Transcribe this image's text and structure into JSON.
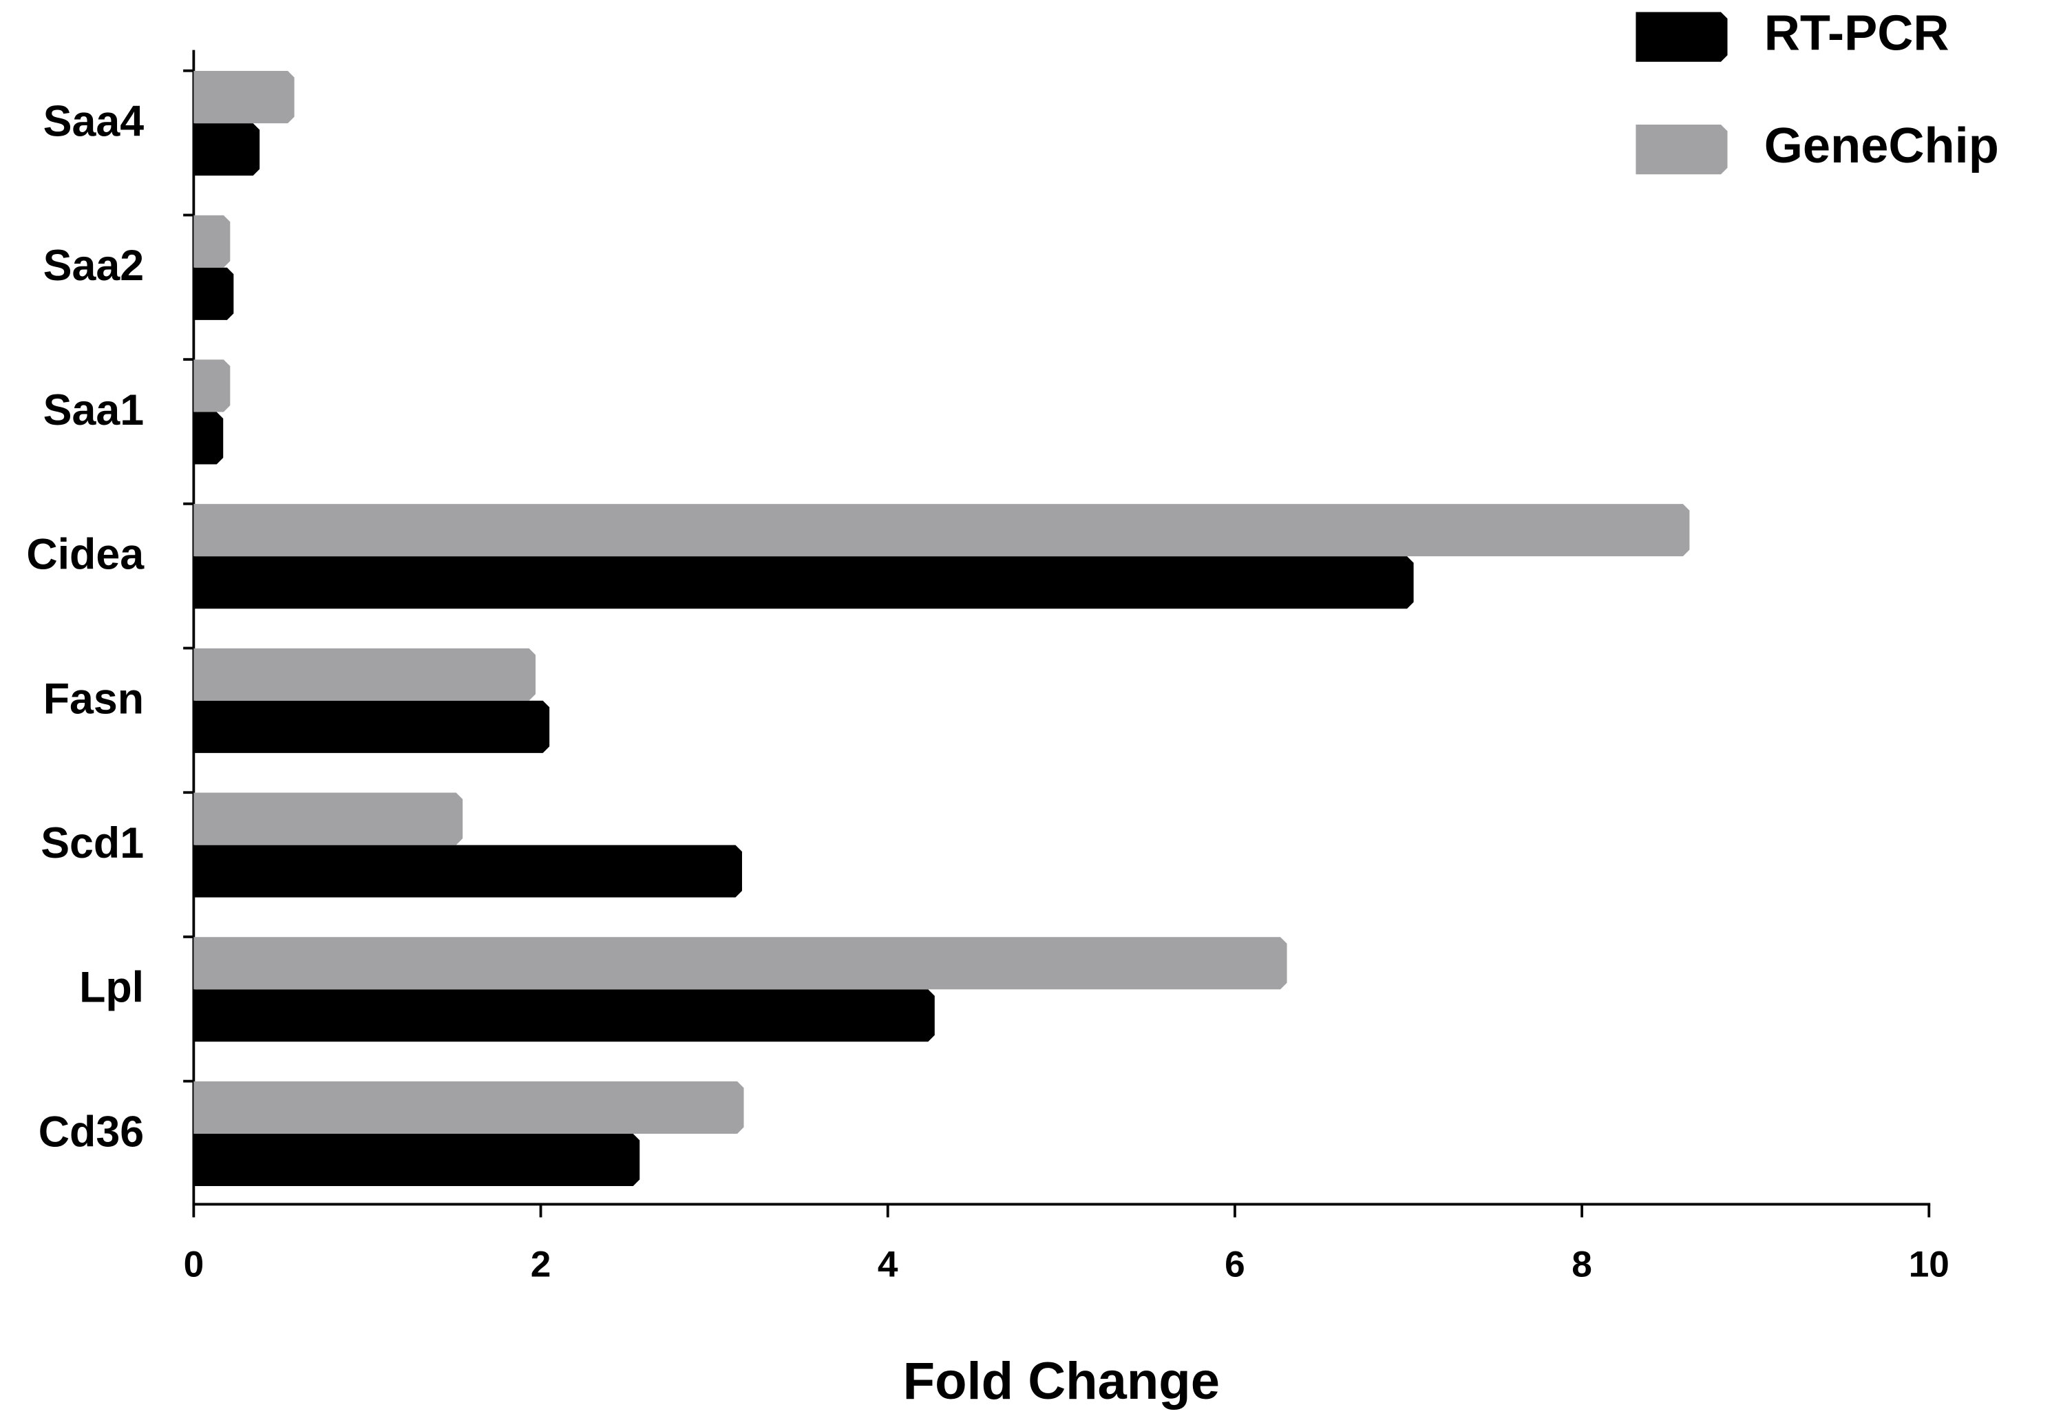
{
  "chart_data": {
    "type": "hbar",
    "x_label": "Fold Change",
    "categories": [
      "Saa4",
      "Saa2",
      "Saa1",
      "Cidea",
      "Fasn",
      "Scd1",
      "Lpl",
      "Cd36"
    ],
    "series": [
      {
        "name": "RT-PCR",
        "color": "#000000",
        "values": [
          0.38,
          0.23,
          0.17,
          7.03,
          2.05,
          3.16,
          4.27,
          2.57
        ]
      },
      {
        "name": "GeneChip",
        "color": "#a2a2a5",
        "values": [
          0.58,
          0.21,
          0.21,
          8.62,
          1.97,
          1.55,
          6.3,
          3.17
        ]
      }
    ],
    "xlim": [
      0,
      10
    ],
    "xticks": [
      0,
      2,
      4,
      6,
      8,
      10
    ],
    "legend": "top-right"
  }
}
